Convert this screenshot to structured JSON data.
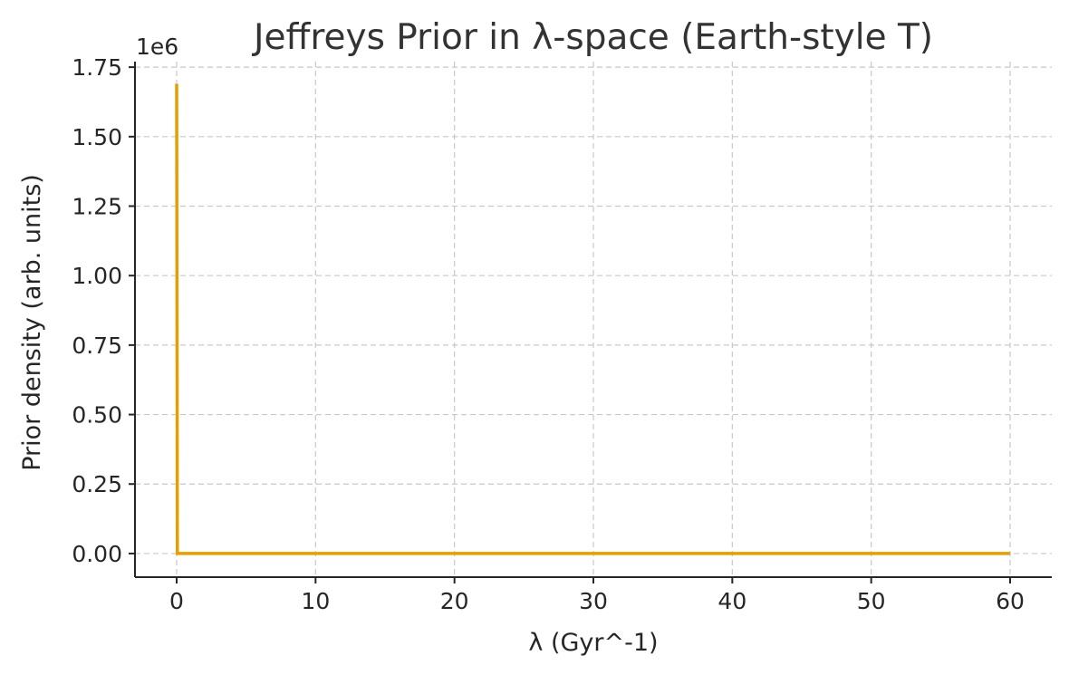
{
  "chart_data": {
    "type": "line",
    "title": "Jeffreys Prior in λ-space (Earth-style T)",
    "xlabel": "λ (Gyr^-1)",
    "ylabel": "Prior density (arb. units)",
    "y_offset_label": "1e6",
    "xlim": [
      -3,
      63
    ],
    "ylim": [
      -0.085,
      1.77
    ],
    "x_ticks": [
      0,
      10,
      20,
      30,
      40,
      50,
      60
    ],
    "x_tick_labels": [
      "0",
      "10",
      "20",
      "30",
      "40",
      "50",
      "60"
    ],
    "y_ticks": [
      0,
      0.25,
      0.5,
      0.75,
      1.0,
      1.25,
      1.5,
      1.75
    ],
    "y_tick_labels": [
      "0.00",
      "0.25",
      "0.50",
      "0.75",
      "1.00",
      "1.25",
      "1.50",
      "1.75"
    ],
    "grid": true,
    "series": [
      {
        "color": "#E69F00",
        "x": [
          0.0,
          0.05,
          0.1,
          0.2,
          0.5,
          1,
          2,
          5,
          10,
          20,
          30,
          40,
          50,
          60
        ],
        "y": [
          1.69,
          0.0,
          0.0,
          0.0,
          0.0,
          0.0,
          0.0,
          0.0,
          0.0,
          0.0,
          0.0,
          0.0,
          0.0,
          0.0
        ]
      }
    ]
  }
}
